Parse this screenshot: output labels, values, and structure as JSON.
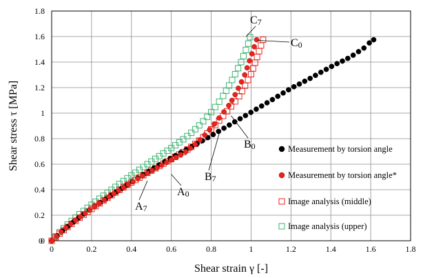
{
  "chart_data": {
    "type": "scatter",
    "xlabel": "Shear strain  γ  [-]",
    "ylabel": "Shear stress  τ  [MPa]",
    "xlim": [
      0,
      1.8
    ],
    "ylim": [
      0,
      1.8
    ],
    "xticks": [
      "0",
      "0.2",
      "0.4",
      "0.6",
      "0.8",
      "1",
      "1.2",
      "1.4",
      "1.6",
      "1.8"
    ],
    "yticks": [
      "0",
      "0.2",
      "0.4",
      "0.6",
      "0.8",
      "1",
      "1.2",
      "1.4",
      "1.6",
      "1.8"
    ],
    "y_zero_label_extra": "0",
    "grid": true,
    "legend_position": "right",
    "series": [
      {
        "name": "Measurement by torsion angle",
        "marker": "filled-circle",
        "color": "#000000",
        "x": [
          0,
          0.027,
          0.054,
          0.081,
          0.108,
          0.135,
          0.162,
          0.189,
          0.216,
          0.243,
          0.27,
          0.297,
          0.324,
          0.351,
          0.378,
          0.405,
          0.432,
          0.459,
          0.486,
          0.513,
          0.54,
          0.567,
          0.594,
          0.621,
          0.648,
          0.675,
          0.702,
          0.729,
          0.756,
          0.783,
          0.81,
          0.837,
          0.864,
          0.891,
          0.918,
          0.945,
          0.972,
          0.999,
          1.026,
          1.053,
          1.08,
          1.107,
          1.134,
          1.161,
          1.188,
          1.215,
          1.242,
          1.269,
          1.296,
          1.323,
          1.35,
          1.377,
          1.404,
          1.431,
          1.458,
          1.485,
          1.512,
          1.539,
          1.566,
          1.593,
          1.615
        ],
        "y": [
          0.0,
          0.039,
          0.077,
          0.112,
          0.146,
          0.179,
          0.21,
          0.241,
          0.27,
          0.299,
          0.327,
          0.355,
          0.383,
          0.41,
          0.437,
          0.464,
          0.491,
          0.518,
          0.544,
          0.57,
          0.595,
          0.62,
          0.644,
          0.668,
          0.691,
          0.714,
          0.737,
          0.76,
          0.784,
          0.808,
          0.832,
          0.857,
          0.882,
          0.907,
          0.932,
          0.956,
          0.981,
          1.006,
          1.031,
          1.056,
          1.081,
          1.106,
          1.132,
          1.158,
          1.183,
          1.207,
          1.228,
          1.25,
          1.272,
          1.296,
          1.32,
          1.343,
          1.366,
          1.388,
          1.408,
          1.429,
          1.454,
          1.482,
          1.51,
          1.55,
          1.575
        ]
      },
      {
        "name": "Measurement by torsion angle*",
        "marker": "filled-circle",
        "color": "#e8231b",
        "x": [
          0,
          0.024,
          0.048,
          0.072,
          0.096,
          0.12,
          0.144,
          0.168,
          0.192,
          0.216,
          0.24,
          0.264,
          0.288,
          0.312,
          0.336,
          0.36,
          0.384,
          0.408,
          0.432,
          0.456,
          0.48,
          0.504,
          0.528,
          0.552,
          0.576,
          0.6,
          0.624,
          0.648,
          0.672,
          0.696,
          0.72,
          0.744,
          0.768,
          0.792,
          0.816,
          0.84,
          0.864,
          0.888,
          0.904,
          0.92,
          0.936,
          0.952,
          0.968,
          0.98,
          0.992,
          1.004,
          1.016,
          1.028
        ],
        "y": [
          0.0,
          0.035,
          0.069,
          0.101,
          0.131,
          0.16,
          0.188,
          0.215,
          0.242,
          0.268,
          0.294,
          0.319,
          0.344,
          0.369,
          0.393,
          0.417,
          0.44,
          0.463,
          0.486,
          0.508,
          0.53,
          0.551,
          0.572,
          0.593,
          0.613,
          0.633,
          0.653,
          0.675,
          0.698,
          0.725,
          0.755,
          0.79,
          0.828,
          0.87,
          0.915,
          0.962,
          1.01,
          1.06,
          1.1,
          1.145,
          1.195,
          1.245,
          1.3,
          1.355,
          1.41,
          1.465,
          1.52,
          1.575
        ]
      },
      {
        "name": "Image analysis (middle)",
        "marker": "open-square",
        "color": "#e8231b",
        "x": [
          0,
          0.02,
          0.04,
          0.06,
          0.08,
          0.1,
          0.12,
          0.14,
          0.16,
          0.18,
          0.2,
          0.22,
          0.24,
          0.26,
          0.28,
          0.3,
          0.32,
          0.34,
          0.36,
          0.38,
          0.4,
          0.42,
          0.44,
          0.46,
          0.48,
          0.5,
          0.52,
          0.54,
          0.56,
          0.58,
          0.6,
          0.62,
          0.64,
          0.66,
          0.68,
          0.7,
          0.72,
          0.74,
          0.76,
          0.78,
          0.8,
          0.82,
          0.84,
          0.86,
          0.88,
          0.9,
          0.92,
          0.94,
          0.955,
          0.97,
          0.985,
          1.0,
          1.01,
          1.02,
          1.03,
          1.04,
          1.05,
          1.06
        ],
        "y": [
          0.0,
          0.028,
          0.056,
          0.083,
          0.108,
          0.132,
          0.156,
          0.18,
          0.203,
          0.226,
          0.249,
          0.271,
          0.293,
          0.315,
          0.336,
          0.357,
          0.378,
          0.398,
          0.418,
          0.438,
          0.457,
          0.476,
          0.495,
          0.514,
          0.532,
          0.55,
          0.568,
          0.586,
          0.604,
          0.622,
          0.64,
          0.658,
          0.676,
          0.695,
          0.715,
          0.736,
          0.759,
          0.784,
          0.811,
          0.841,
          0.873,
          0.907,
          0.942,
          0.978,
          1.015,
          1.053,
          1.092,
          1.132,
          1.172,
          1.215,
          1.26,
          1.305,
          1.35,
          1.395,
          1.44,
          1.485,
          1.53,
          1.575
        ]
      },
      {
        "name": "Image analysis (upper)",
        "marker": "open-square",
        "color": "#3cb371",
        "x": [
          0,
          0.02,
          0.04,
          0.06,
          0.08,
          0.1,
          0.12,
          0.14,
          0.16,
          0.18,
          0.2,
          0.22,
          0.24,
          0.26,
          0.28,
          0.3,
          0.32,
          0.34,
          0.36,
          0.38,
          0.4,
          0.42,
          0.44,
          0.46,
          0.48,
          0.5,
          0.52,
          0.54,
          0.56,
          0.58,
          0.6,
          0.62,
          0.64,
          0.66,
          0.68,
          0.7,
          0.72,
          0.74,
          0.76,
          0.78,
          0.8,
          0.82,
          0.84,
          0.86,
          0.875,
          0.89,
          0.905,
          0.92,
          0.935,
          0.95,
          0.962,
          0.974,
          0.986,
          0.995
        ],
        "y": [
          0.0,
          0.034,
          0.067,
          0.098,
          0.127,
          0.155,
          0.182,
          0.208,
          0.233,
          0.258,
          0.282,
          0.306,
          0.33,
          0.353,
          0.376,
          0.399,
          0.422,
          0.445,
          0.468,
          0.49,
          0.512,
          0.534,
          0.556,
          0.578,
          0.6,
          0.621,
          0.642,
          0.663,
          0.684,
          0.705,
          0.726,
          0.748,
          0.771,
          0.795,
          0.82,
          0.846,
          0.874,
          0.904,
          0.936,
          0.971,
          1.008,
          1.048,
          1.09,
          1.135,
          1.175,
          1.217,
          1.26,
          1.305,
          1.352,
          1.4,
          1.447,
          1.495,
          1.545,
          1.595
        ]
      }
    ],
    "annotations": [
      {
        "base": "A",
        "sub": "0",
        "x": 0.6,
        "y": 0.52
      },
      {
        "base": "A",
        "sub": "7",
        "x": 0.48,
        "y": 0.47
      },
      {
        "base": "B",
        "sub": "0",
        "x": 0.9,
        "y": 0.98
      },
      {
        "base": "B",
        "sub": "7",
        "x": 0.84,
        "y": 0.84
      },
      {
        "base": "C",
        "sub": "7",
        "x": 0.975,
        "y": 1.6
      },
      {
        "base": "C",
        "sub": "0",
        "x": 1.035,
        "y": 1.57
      }
    ]
  }
}
